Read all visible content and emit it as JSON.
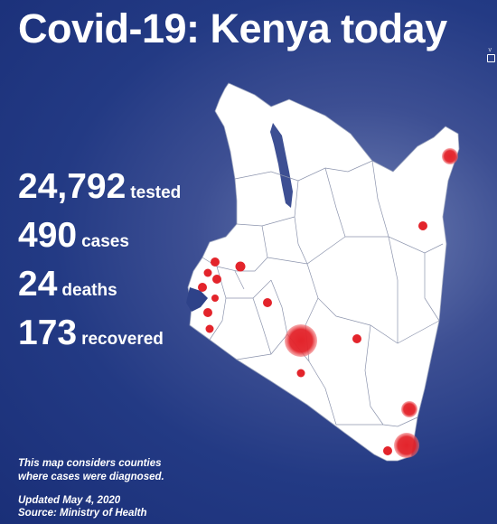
{
  "title": "Covid-19: Kenya today",
  "stats": [
    {
      "value": "24,792",
      "label": "tested"
    },
    {
      "value": "490",
      "label": "cases"
    },
    {
      "value": "24",
      "label": "deaths"
    },
    {
      "value": "173",
      "label": "recovered"
    }
  ],
  "note_line1": "This map considers counties",
  "note_line2": "where cases were diagnosed.",
  "updated": "Updated May 4, 2020",
  "source": "Source: Ministry of Health",
  "colors": {
    "background": "#233a84",
    "map_fill": "#ffffff",
    "marker": "#e3242b"
  }
}
